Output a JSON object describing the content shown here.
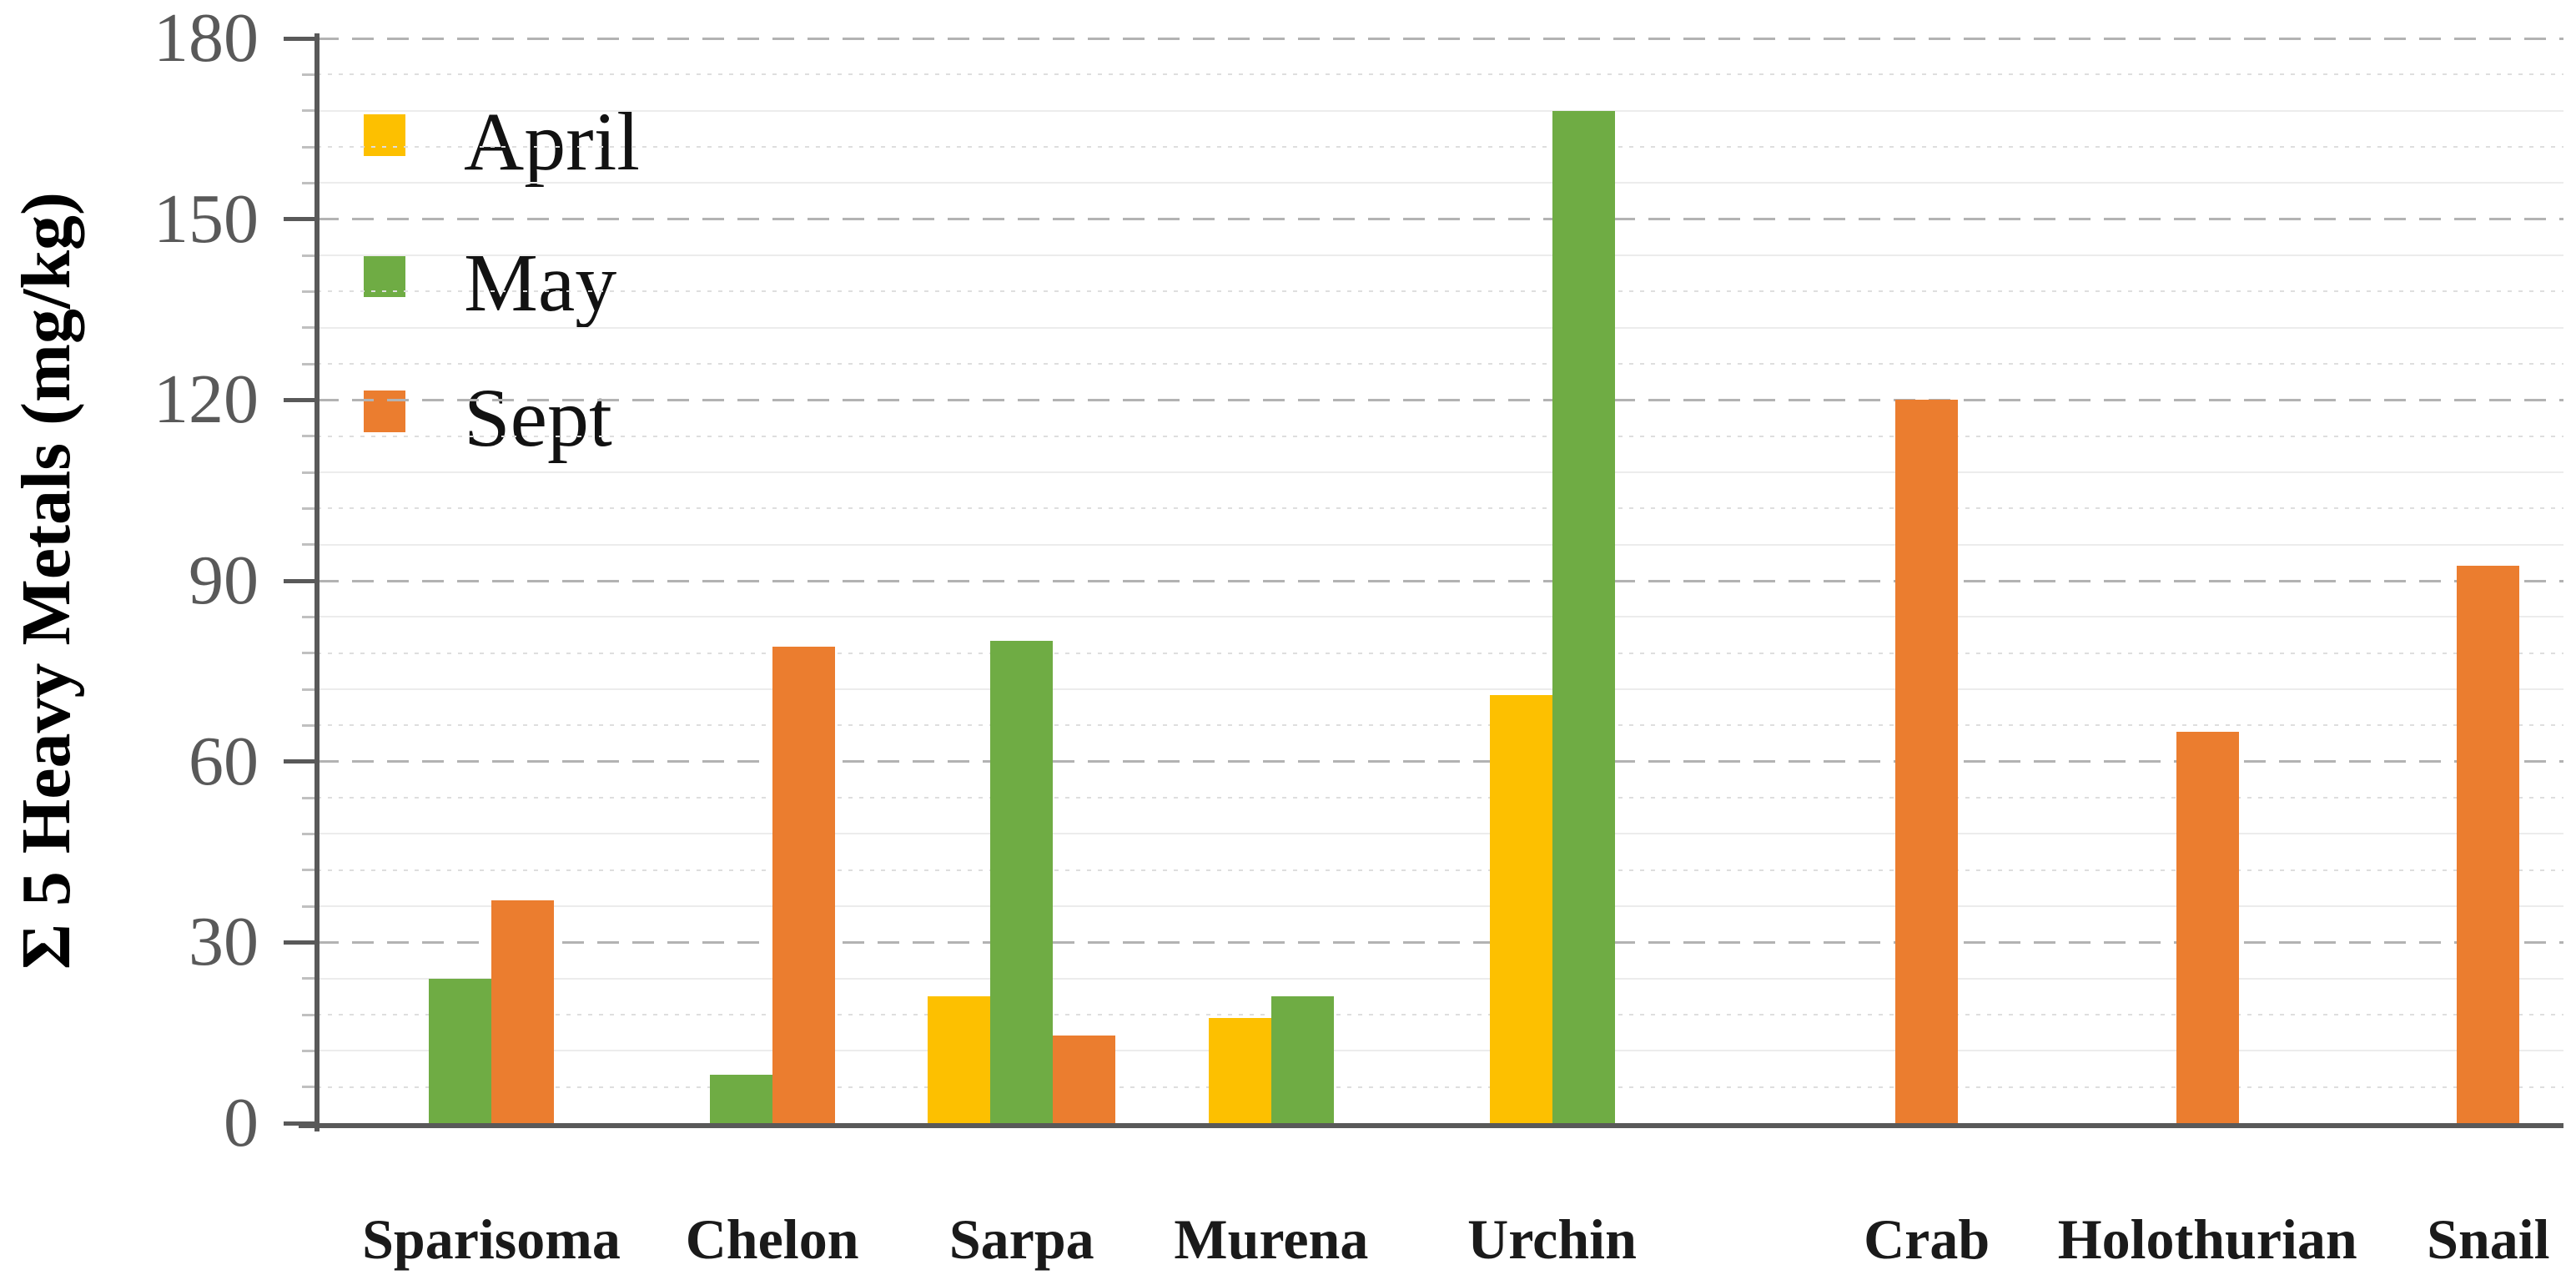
{
  "chart_data": {
    "type": "bar",
    "title": "",
    "xlabel": "",
    "ylabel": "Σ 5 Heavy Metals (mg/kg)",
    "ylim": [
      0,
      180
    ],
    "major_unit": 30,
    "minor_unit": 6,
    "grid": true,
    "legend_position": "inside-top-left",
    "y_ticks": [
      0,
      30,
      60,
      90,
      120,
      150,
      180
    ],
    "categories": [
      "Sparisoma",
      "Chelon",
      "Sarpa",
      "Murena",
      "Urchin",
      "Crab",
      "Holothurian",
      "Snail"
    ],
    "series": [
      {
        "name": "April",
        "color": "#FDC000",
        "values": [
          null,
          null,
          21,
          17.5,
          71,
          null,
          null,
          null
        ]
      },
      {
        "name": "May",
        "color": "#6FAC44",
        "values": [
          24,
          8,
          80,
          21,
          168,
          null,
          null,
          null
        ]
      },
      {
        "name": "Sept",
        "color": "#EB7D2F",
        "values": [
          37,
          79,
          14.5,
          null,
          null,
          120,
          65,
          92.5
        ]
      }
    ]
  },
  "colors": {
    "background": "#ffffff",
    "axis_line": "#595959",
    "tick_label": "#595959",
    "gridline_major": "#b3b3b3",
    "gridline_minor": "#dedede",
    "category_label": "#1a1a1a",
    "legend_text": "#121212"
  }
}
